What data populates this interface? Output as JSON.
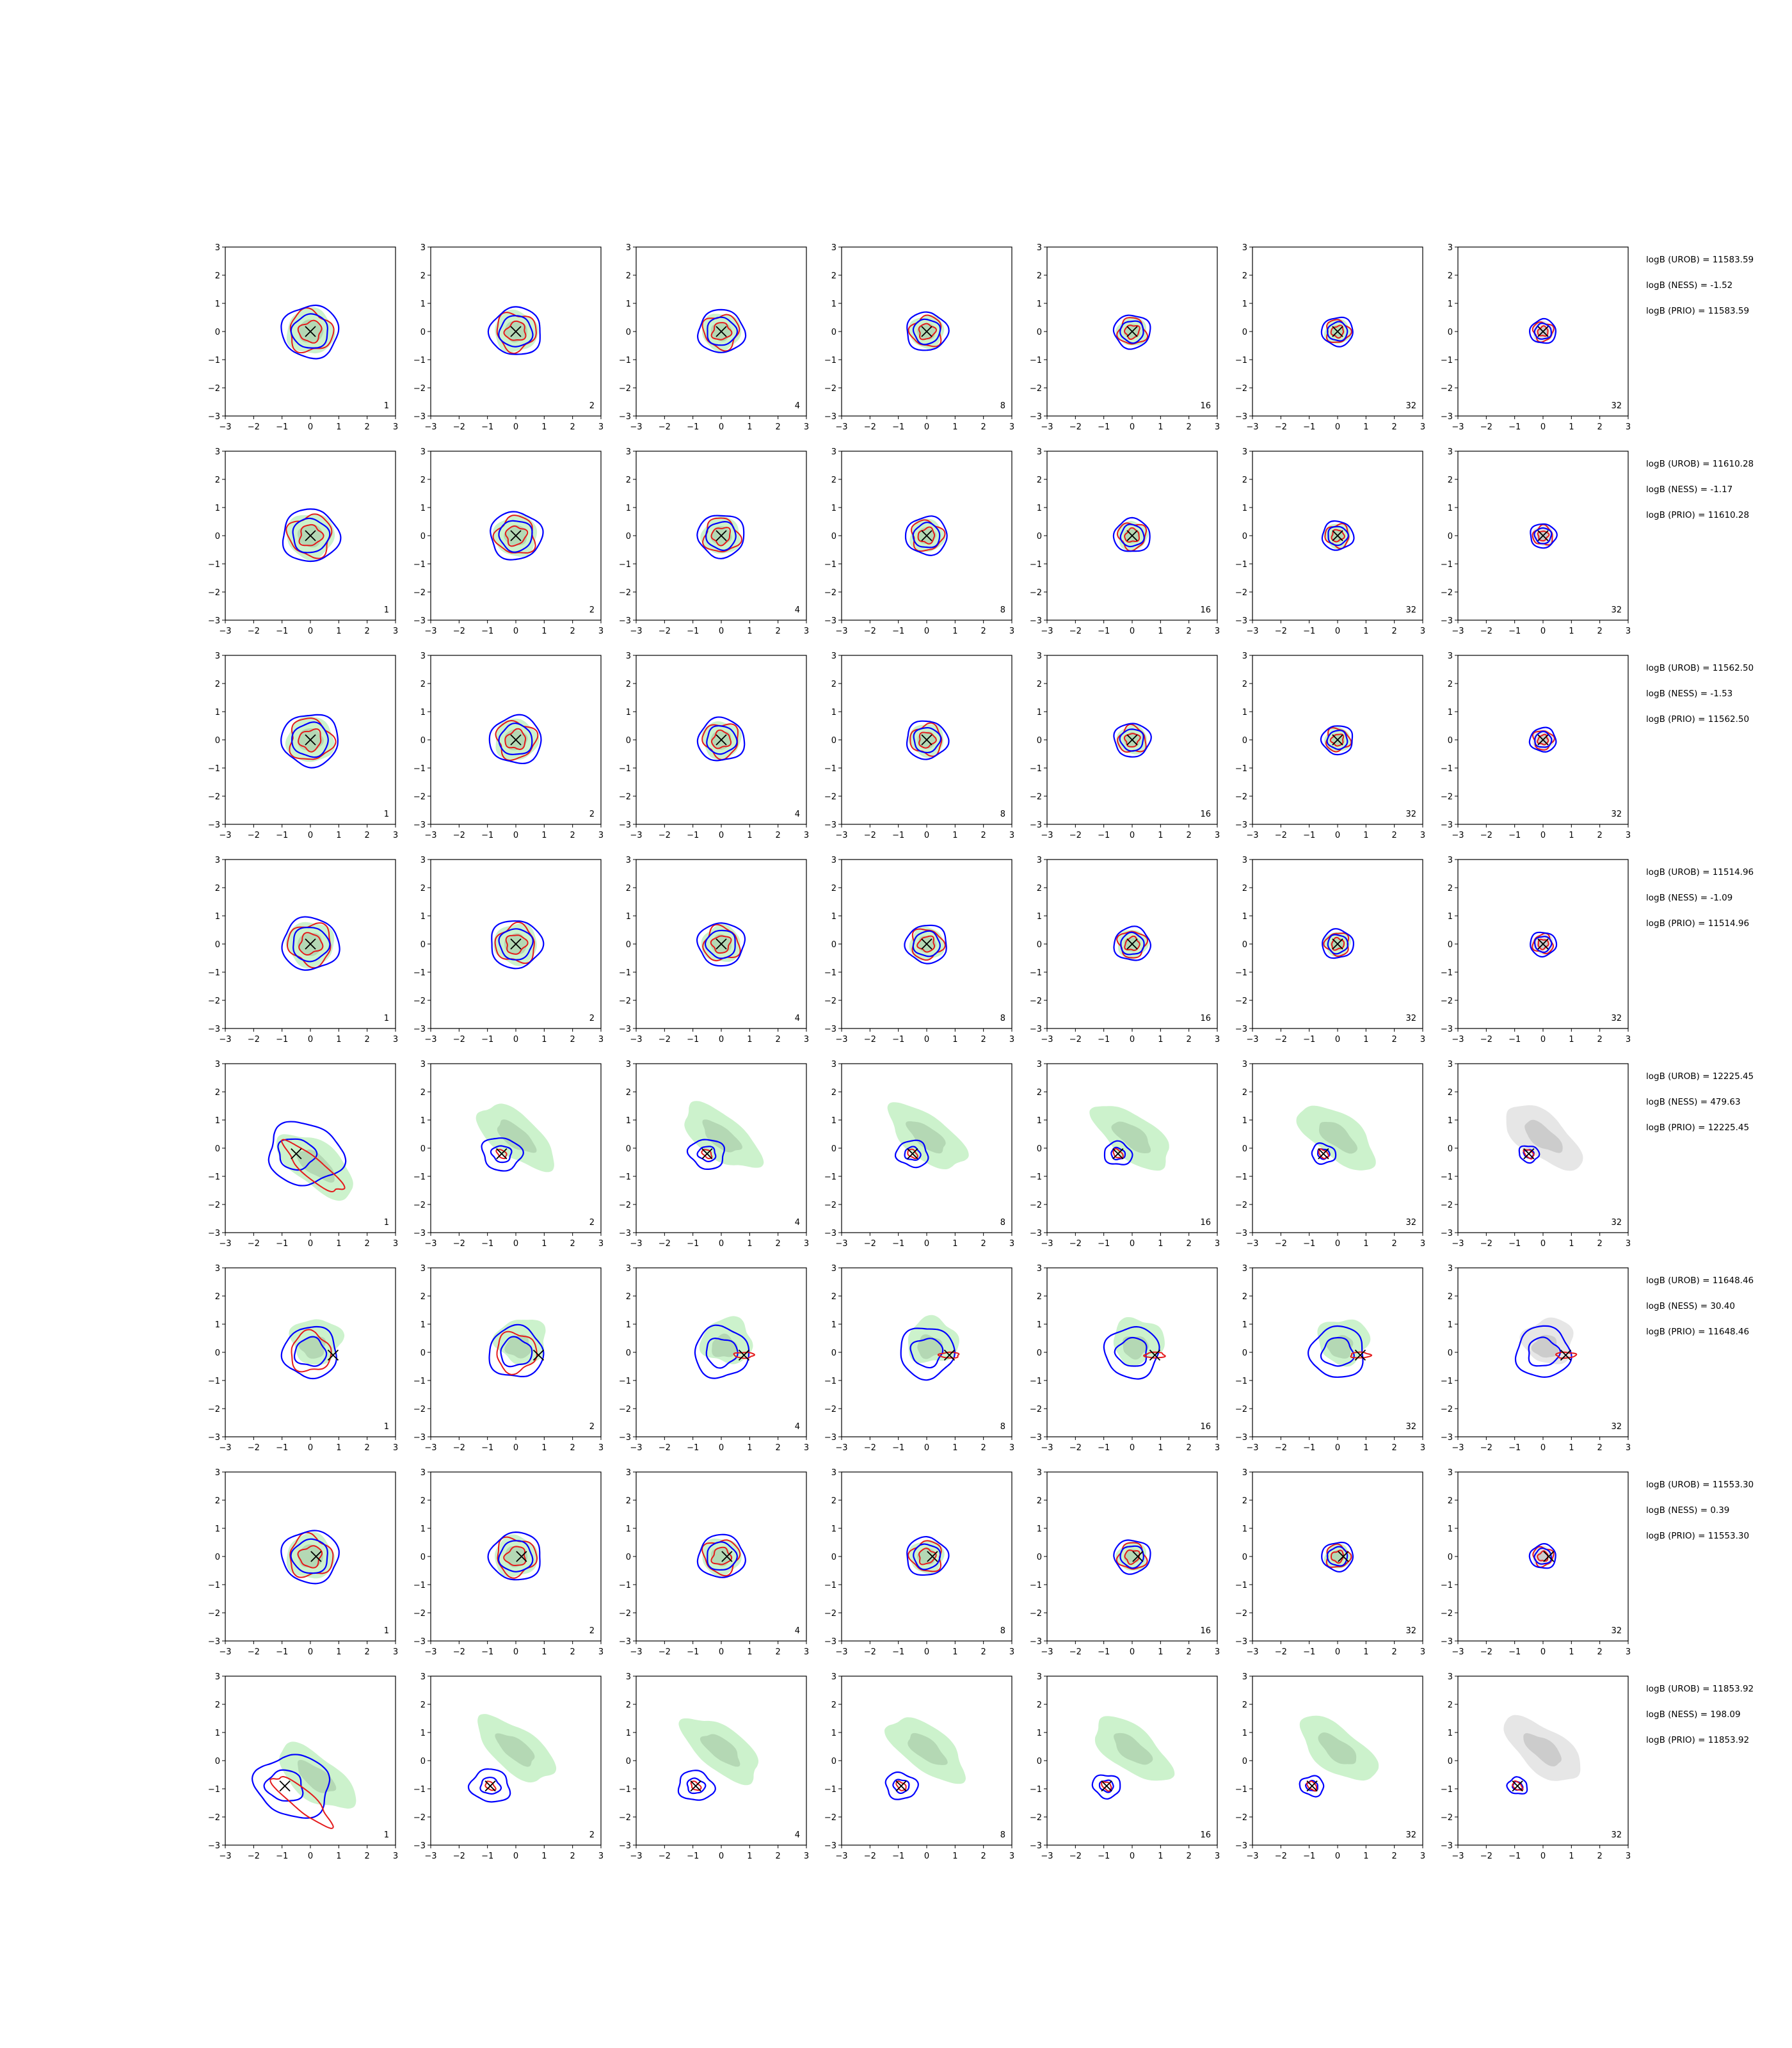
{
  "chart_data": {
    "type": "contour",
    "xlim": [
      -3,
      3
    ],
    "ylim": [
      -3,
      3
    ],
    "ticks": [
      "−3",
      "−2",
      "−1",
      "0",
      "1",
      "2",
      "3"
    ],
    "tick_values": [
      -3,
      -2,
      -1,
      0,
      1,
      2,
      3
    ],
    "columns": [
      {
        "label": "1"
      },
      {
        "label": "2"
      },
      {
        "label": "4"
      },
      {
        "label": "8"
      },
      {
        "label": "16"
      },
      {
        "label": "32"
      },
      {
        "label": "32"
      }
    ],
    "colors": {
      "blue": "#0000ff",
      "red": "#e41a1c",
      "green": "#ccf2cc",
      "green_dark": "#b4d8b4",
      "grey": "#e6e6e6",
      "grey_dark": "#cccccc",
      "marker": "#000000"
    },
    "rows": [
      {
        "truth": [
          0,
          0
        ],
        "shape": "round",
        "drift": 0,
        "stats": [
          "logB (UROB) = 11583.59",
          "logB (NESS) = -1.52",
          "logB (PRIO) = 11583.59"
        ]
      },
      {
        "truth": [
          0,
          0
        ],
        "shape": "round",
        "drift": 0,
        "stats": [
          "logB (UROB) = 11610.28",
          "logB (NESS) = -1.17",
          "logB (PRIO) = 11610.28"
        ]
      },
      {
        "truth": [
          0,
          0
        ],
        "shape": "round",
        "drift": 0,
        "stats": [
          "logB (UROB) = 11562.50",
          "logB (NESS) = -1.53",
          "logB (PRIO) = 11562.50"
        ]
      },
      {
        "truth": [
          0,
          0
        ],
        "shape": "round",
        "drift": 0,
        "stats": [
          "logB (UROB) = 11514.96",
          "logB (NESS) = -1.09",
          "logB (PRIO) = 11514.96"
        ]
      },
      {
        "truth": [
          -0.5,
          -0.2
        ],
        "shape": "diagonal",
        "drift": 1,
        "stats": [
          "logB (UROB) = 12225.45",
          "logB (NESS) = 479.63",
          "logB (PRIO) = 12225.45"
        ]
      },
      {
        "truth": [
          0.8,
          -0.1
        ],
        "shape": "offset",
        "drift": 1,
        "stats": [
          "logB (UROB) = 11648.46",
          "logB (NESS) = 30.40",
          "logB (PRIO) = 11648.46"
        ]
      },
      {
        "truth": [
          0.2,
          0
        ],
        "shape": "round",
        "drift": 0,
        "stats": [
          "logB (UROB) = 11553.30",
          "logB (NESS) = 0.39",
          "logB (PRIO) = 11553.30"
        ]
      },
      {
        "truth": [
          -0.9,
          -0.9
        ],
        "shape": "diagonal2",
        "drift": 1,
        "stats": [
          "logB (UROB) = 11853.92",
          "logB (NESS) = 198.09",
          "logB (PRIO) = 11853.92"
        ]
      }
    ]
  }
}
